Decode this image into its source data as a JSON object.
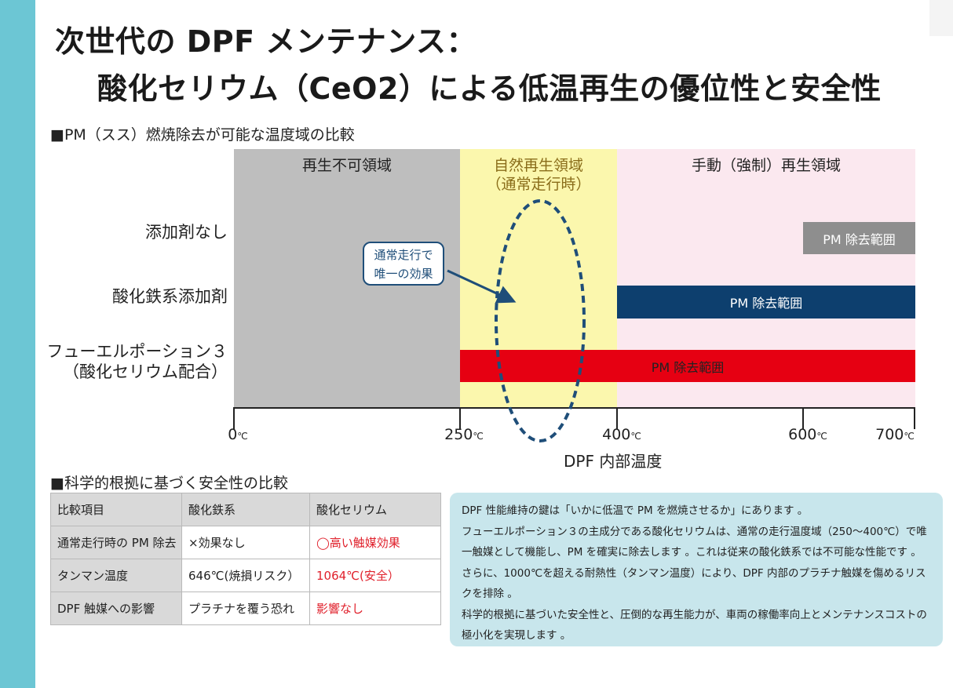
{
  "colors": {
    "accent_bar": "#6cc6d4",
    "zone_no_regen": "#bebebe",
    "zone_natural": "#fbf7ad",
    "zone_manual": "#fbe8ef",
    "bar_none": "#8e8e8e",
    "bar_iron": "#0d3f6e",
    "bar_ceo2": "#e60012",
    "natural_label": "#8a6d1a",
    "ellipse": "#1f4e79",
    "highlight_red": "#e0202b",
    "info_box": "#c8e6ec"
  },
  "title": {
    "line1": "次世代の DPF メンテナンス：",
    "line2": "酸化セリウム（CeO2）による低温再生の優位性と安全性"
  },
  "diagram": {
    "section_title": "■PM（スス）燃焼除去が可能な温度域の比較",
    "zones": [
      {
        "label": "再生不可領域",
        "sub": ""
      },
      {
        "label": "自然再生領域",
        "sub": "（通常走行時）"
      },
      {
        "label": "手動（強制）再生領域",
        "sub": ""
      }
    ],
    "rows": [
      {
        "label": "添加剤なし",
        "sub": "",
        "bar_label": "PM 除去範囲"
      },
      {
        "label": "酸化鉄系添加剤",
        "sub": "",
        "bar_label": "PM 除去範囲"
      },
      {
        "label": "フューエルポーション３",
        "sub": "（酸化セリウム配合）",
        "bar_label": "PM 除去範囲"
      }
    ],
    "ticks": [
      {
        "value": "0",
        "unit": "℃"
      },
      {
        "value": "250",
        "unit": "℃"
      },
      {
        "value": "400",
        "unit": "℃"
      },
      {
        "value": "600",
        "unit": "℃"
      },
      {
        "value": "700",
        "unit": "℃"
      }
    ],
    "axis_title": "DPF 内部温度",
    "callout": {
      "line1": "通常走行で",
      "line2": "唯一の効果"
    }
  },
  "comparison": {
    "section_title": "■科学的根拠に基づく安全性の比較",
    "headers": [
      "比較項目",
      "酸化鉄系",
      "酸化セリウム"
    ],
    "rows": [
      [
        "通常走行時の PM 除去",
        "×効果なし",
        "◯高い触媒効果"
      ],
      [
        "タンマン温度",
        "646℃(焼損リスク）",
        "1064℃(安全）"
      ],
      [
        "DPF 触媒への影響",
        "プラチナを覆う恐れ",
        "影響なし"
      ]
    ]
  },
  "info": {
    "p1": "DPF 性能維持の鍵は「いかに低温で PM を燃焼させるか」にあります 。",
    "p2": "フューエルポーション３の主成分である酸化セリウムは、通常の走行温度域（250～400℃）で唯一触媒として機能し、PM を確実に除去します 。これは従来の酸化鉄系では不可能な性能です 。さらに、1000℃を超える耐熱性（タンマン温度）により、DPF 内部のプラチナ触媒を傷めるリスクを排除 。",
    "p3": "科学的根拠に基づいた安全性と、圧倒的な再生能力が、車両の稼働率向上とメンテナンスコストの極小化を実現します 。"
  }
}
